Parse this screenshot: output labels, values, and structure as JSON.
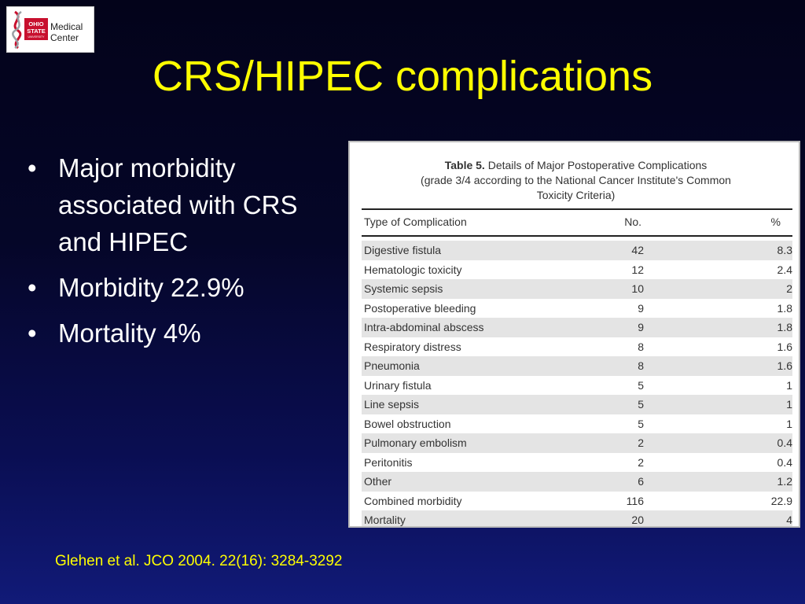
{
  "logo": {
    "institution": "OHIO STATE UNIVERSITY",
    "line1": "Medical",
    "line2": "Center",
    "colors": {
      "red": "#c8102e",
      "gray": "#666666",
      "dark": "#222222"
    }
  },
  "slide": {
    "title": "CRS/HIPEC complications",
    "bullets": [
      "Major morbidity associated with CRS and HIPEC",
      "Morbidity 22.9%",
      "Mortality 4%"
    ],
    "bullet_glyph": "•",
    "citation": "Glehen et al. JCO 2004. 22(16): 3284-3292",
    "colors": {
      "title": "#ffff00",
      "text": "#ffffff",
      "citation": "#ffff00"
    }
  },
  "table": {
    "caption_label": "Table 5.",
    "caption_line1": "Details of Major Postoperative Complications",
    "caption_line2": "(grade 3/4 according to the National Cancer Institute's Common",
    "caption_line3": "Toxicity Criteria)",
    "headers": {
      "type": "Type of Complication",
      "no": "No.",
      "pct": "%"
    },
    "rows": [
      {
        "type": "Digestive fistula",
        "no": "42",
        "pct": "8.3"
      },
      {
        "type": "Hematologic toxicity",
        "no": "12",
        "pct": "2.4"
      },
      {
        "type": "Systemic sepsis",
        "no": "10",
        "pct": "2"
      },
      {
        "type": "Postoperative bleeding",
        "no": "9",
        "pct": "1.8"
      },
      {
        "type": "Intra-abdominal abscess",
        "no": "9",
        "pct": "1.8"
      },
      {
        "type": "Respiratory distress",
        "no": "8",
        "pct": "1.6"
      },
      {
        "type": "Pneumonia",
        "no": "8",
        "pct": "1.6"
      },
      {
        "type": "Urinary fistula",
        "no": "5",
        "pct": "1"
      },
      {
        "type": "Line sepsis",
        "no": "5",
        "pct": "1"
      },
      {
        "type": "Bowel obstruction",
        "no": "5",
        "pct": "1"
      },
      {
        "type": "Pulmonary embolism",
        "no": "2",
        "pct": "0.4"
      },
      {
        "type": "Peritonitis",
        "no": "2",
        "pct": "0.4"
      },
      {
        "type": "Other",
        "no": "6",
        "pct": "1.2"
      },
      {
        "type": "Combined morbidity",
        "no": "116",
        "pct": "22.9"
      },
      {
        "type": "Mortality",
        "no": "20",
        "pct": "4"
      }
    ]
  }
}
